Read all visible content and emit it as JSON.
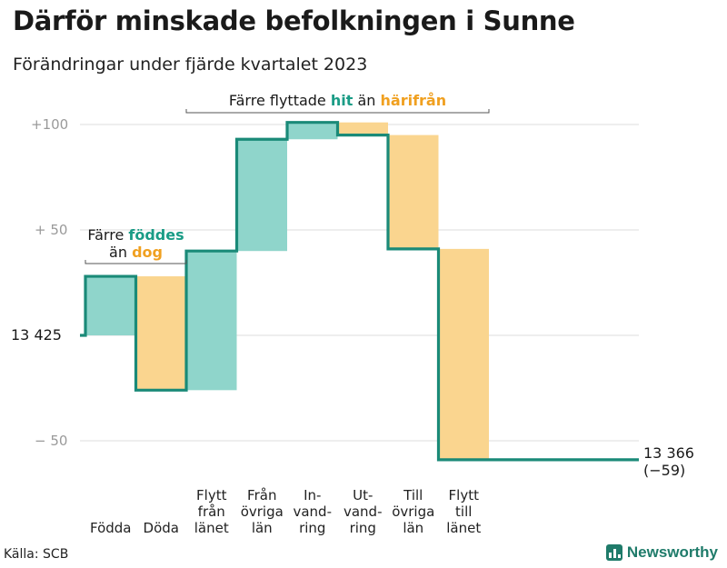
{
  "title": "Därför minskade befolkningen i Sunne",
  "subtitle": "Förändringar under fjärde kvartalet 2023",
  "source": "Källa: SCB",
  "brand": "Newsworthy",
  "colors": {
    "increase": "#8fd5cb",
    "decrease": "#fad58f",
    "line": "#1a8a78",
    "increase_text": "#1a9c86",
    "decrease_text": "#f0a020"
  },
  "chart_data": {
    "type": "waterfall",
    "start_label": "13  425",
    "start_value": 13425,
    "end_label": "13 366",
    "end_change_label": "(−59)",
    "end_value": 13366,
    "yticks": [
      {
        "value": 100,
        "label": "+100"
      },
      {
        "value": 50,
        "label": "+  50"
      },
      {
        "value": -50,
        "label": "−  50"
      }
    ],
    "ylim": [
      -60,
      104
    ],
    "steps": [
      {
        "label": [
          "Födda"
        ],
        "value": 28,
        "kind": "increase"
      },
      {
        "label": [
          "Döda"
        ],
        "value": -54,
        "kind": "decrease"
      },
      {
        "label": [
          "Flytt",
          "från",
          "länet"
        ],
        "value": 66,
        "kind": "increase"
      },
      {
        "label": [
          "Från",
          "övriga",
          "län"
        ],
        "value": 53,
        "kind": "increase"
      },
      {
        "label": [
          "In-",
          "vand-",
          "ring"
        ],
        "value": 8,
        "kind": "increase"
      },
      {
        "label": [
          "Ut-",
          "vand-",
          "ring"
        ],
        "value": -6,
        "kind": "decrease"
      },
      {
        "label": [
          "Till",
          "övriga",
          "län"
        ],
        "value": -54,
        "kind": "decrease"
      },
      {
        "label": [
          "Flytt",
          "till",
          "länet"
        ],
        "value": -100,
        "kind": "decrease"
      }
    ],
    "annotations": [
      {
        "id": "born",
        "spans": [
          0,
          1
        ],
        "line1": "Färre",
        "in_word": "föddes",
        "line2": "än",
        "out_word": "dog"
      },
      {
        "id": "moved",
        "spans": [
          2,
          7
        ],
        "text1": "Färre flyttade",
        "in_word": "hit",
        "text2": "än",
        "out_word": "härifrån"
      }
    ]
  }
}
